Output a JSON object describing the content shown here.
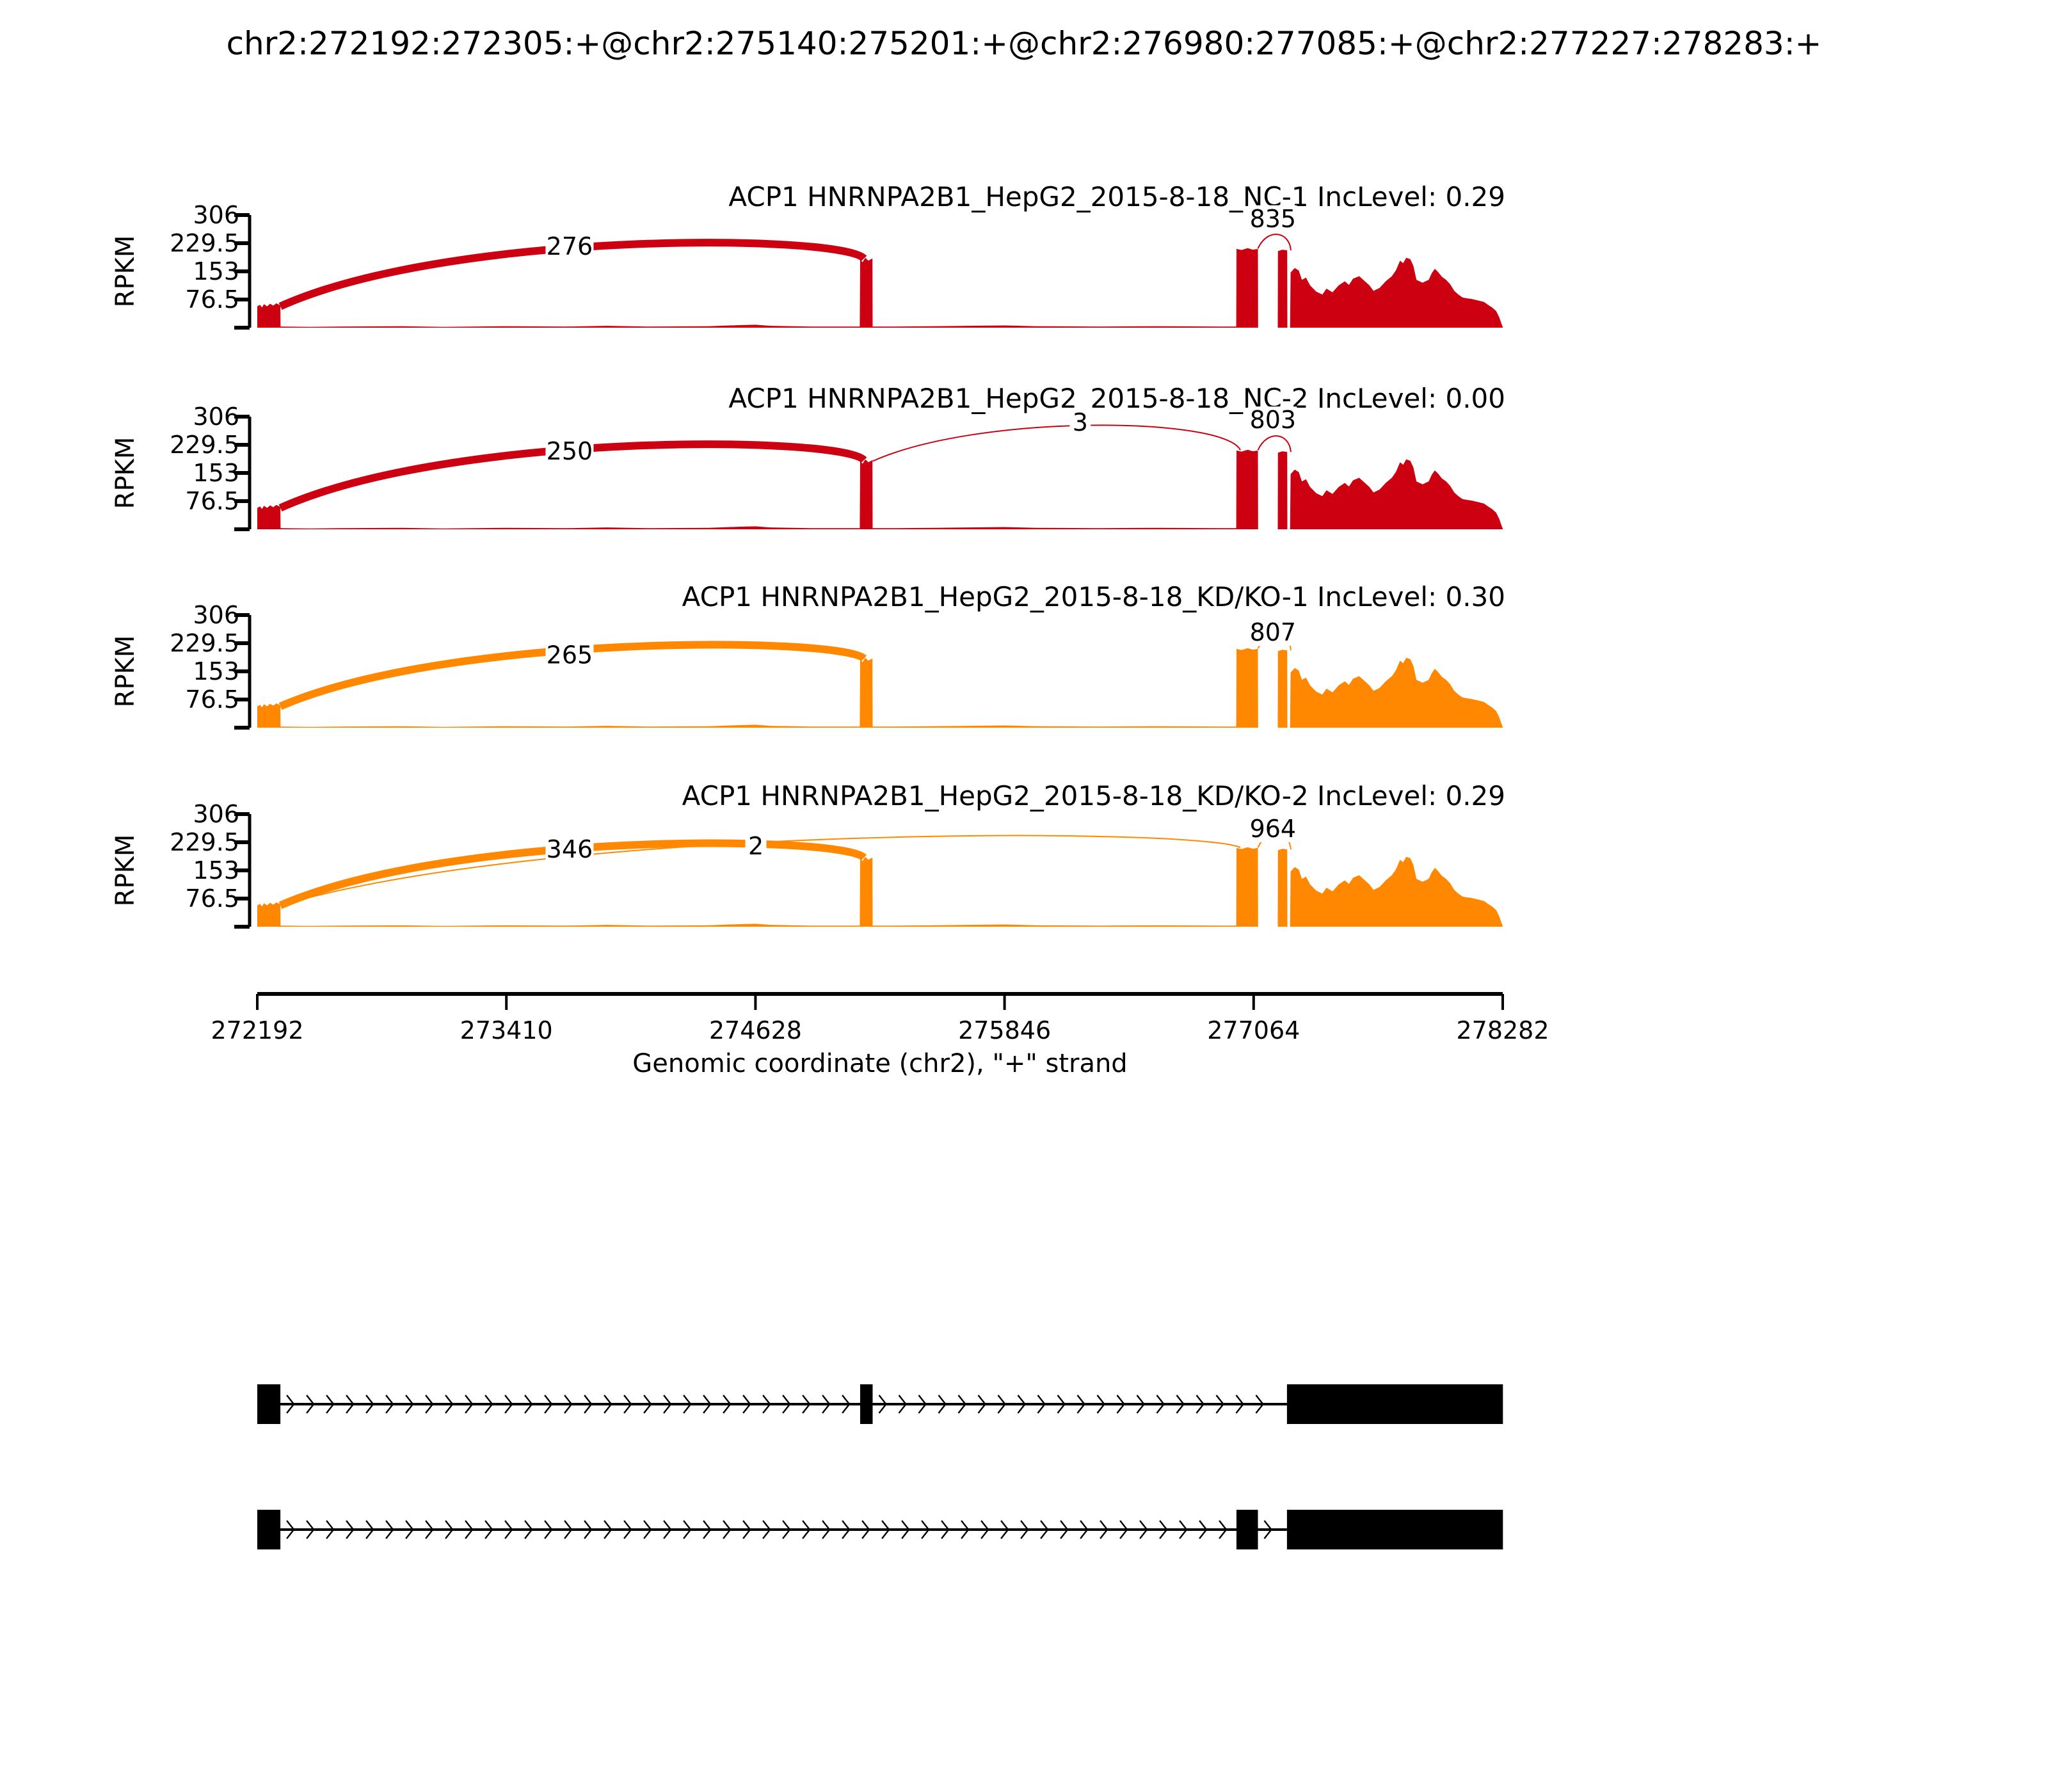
{
  "title": "chr2:272192:272305:+@chr2:275140:275201:+@chr2:276980:277085:+@chr2:277227:278283:+",
  "colors": {
    "group1": "#CC0011",
    "group2": "#FF8800",
    "axis": "#000000",
    "isoform": "#000000",
    "background": "#ffffff"
  },
  "y_axis": {
    "label": "RPKM",
    "tick_labels": [
      "306",
      "229.5",
      "153",
      "76.5"
    ],
    "tick_values": [
      306,
      229.5,
      153,
      76.5
    ],
    "max": 306
  },
  "x_axis": {
    "label": "Genomic coordinate (chr2), \"+\" strand",
    "tick_labels": [
      "272192",
      "273410",
      "274628",
      "275846",
      "277064",
      "278282"
    ],
    "tick_values": [
      272192,
      273410,
      274628,
      275846,
      277064,
      278282
    ],
    "min": 272192,
    "max": 278282
  },
  "chart_data": {
    "type": "area",
    "subtype": "sashimi-coverage",
    "region": "chr2:272192-278282",
    "strand": "+",
    "gene": "ACP1",
    "exons": [
      [
        272192,
        272305
      ],
      [
        275140,
        275201
      ],
      [
        276980,
        277085
      ],
      [
        277227,
        278283
      ]
    ],
    "ylim": [
      0,
      306
    ],
    "grid": false,
    "tracks": [
      {
        "label": "ACP1 HNRNPA2B1_HepG2_2015-8-18_NC-1 IncLevel: 0.29",
        "inc_level": 0.29,
        "color": "#CC0011",
        "junctions": [
          {
            "count": 276,
            "from": 272305,
            "from_h": 58,
            "to": 275140,
            "to_h": 188,
            "apex": 238,
            "style": "thick",
            "label_g": 273719,
            "label_rpkm": 221
          },
          {
            "count": 835,
            "from": 277085,
            "from_h": 215,
            "to": 277227,
            "to_h": 210,
            "apex": 245,
            "style": "thin",
            "label_g": 277158,
            "label_rpkm": 296
          }
        ]
      },
      {
        "label": "ACP1 HNRNPA2B1_HepG2_2015-8-18_NC-2 IncLevel: 0.00",
        "inc_level": 0.0,
        "color": "#CC0011",
        "junctions": [
          {
            "count": 250,
            "from": 272305,
            "from_h": 58,
            "to": 275140,
            "to_h": 188,
            "apex": 238,
            "style": "thick",
            "label_g": 273719,
            "label_rpkm": 212
          },
          {
            "count": 3,
            "from": 275201,
            "from_h": 185,
            "to": 276980,
            "to_h": 215,
            "apex": 288,
            "style": "thin",
            "label_g": 276216,
            "label_rpkm": 290
          },
          {
            "count": 803,
            "from": 277085,
            "from_h": 215,
            "to": 277227,
            "to_h": 210,
            "apex": 245,
            "style": "thin",
            "label_g": 277158,
            "label_rpkm": 297
          }
        ]
      },
      {
        "label": "ACP1 HNRNPA2B1_HepG2_2015-8-18_KD/KO-1 IncLevel: 0.30",
        "inc_level": 0.3,
        "color": "#FF8800",
        "junctions": [
          {
            "count": 265,
            "from": 272305,
            "from_h": 58,
            "to": 275140,
            "to_h": 188,
            "apex": 230,
            "style": "thick",
            "label_g": 273719,
            "label_rpkm": 197
          },
          {
            "count": 807,
            "from": 277085,
            "from_h": 215,
            "to": 277227,
            "to_h": 210,
            "apex": 245,
            "style": "thin",
            "label_g": 277158,
            "label_rpkm": 259
          }
        ]
      },
      {
        "label": "ACP1 HNRNPA2B1_HepG2_2015-8-18_KD/KO-2 IncLevel: 0.29",
        "inc_level": 0.29,
        "color": "#FF8800",
        "junctions": [
          {
            "count": 346,
            "from": 272305,
            "from_h": 58,
            "to": 275140,
            "to_h": 188,
            "apex": 232,
            "style": "thick",
            "label_g": 273719,
            "label_rpkm": 210
          },
          {
            "count": 2,
            "from": 272305,
            "from_h": 58,
            "to": 276980,
            "to_h": 215,
            "apex": 252,
            "style": "thin",
            "label_g": 274630,
            "label_rpkm": 219
          },
          {
            "count": 964,
            "from": 277085,
            "from_h": 215,
            "to": 277227,
            "to_h": 210,
            "apex": 245,
            "style": "thin",
            "label_g": 277158,
            "label_rpkm": 266
          }
        ]
      }
    ],
    "coverage_profile": [
      [
        272192,
        58
      ],
      [
        272205,
        62
      ],
      [
        272215,
        55
      ],
      [
        272225,
        64
      ],
      [
        272240,
        58
      ],
      [
        272255,
        65
      ],
      [
        272270,
        60
      ],
      [
        272285,
        66
      ],
      [
        272300,
        62
      ],
      [
        272305,
        60
      ],
      [
        272306,
        3
      ],
      [
        272450,
        2
      ],
      [
        272600,
        3
      ],
      [
        272900,
        4
      ],
      [
        273100,
        2
      ],
      [
        273400,
        4
      ],
      [
        273700,
        3
      ],
      [
        273900,
        5
      ],
      [
        274100,
        3
      ],
      [
        274400,
        4
      ],
      [
        274550,
        7
      ],
      [
        274628,
        8
      ],
      [
        274700,
        5
      ],
      [
        274900,
        3
      ],
      [
        275100,
        3
      ],
      [
        275138,
        3
      ],
      [
        275140,
        185
      ],
      [
        275152,
        178
      ],
      [
        275165,
        190
      ],
      [
        275180,
        182
      ],
      [
        275200,
        188
      ],
      [
        275201,
        3
      ],
      [
        275300,
        3
      ],
      [
        275500,
        4
      ],
      [
        275846,
        6
      ],
      [
        276000,
        4
      ],
      [
        276300,
        3
      ],
      [
        276600,
        4
      ],
      [
        276900,
        3
      ],
      [
        276979,
        3
      ],
      [
        276980,
        214
      ],
      [
        277005,
        211
      ],
      [
        277035,
        216
      ],
      [
        277060,
        212
      ],
      [
        277085,
        214
      ],
      [
        277086,
        0
      ],
      [
        277182,
        0
      ],
      [
        277183,
        208
      ],
      [
        277205,
        212
      ],
      [
        277228,
        210
      ],
      [
        277229,
        0
      ],
      [
        277242,
        0
      ],
      [
        277245,
        150
      ],
      [
        277265,
        162
      ],
      [
        277285,
        155
      ],
      [
        277300,
        130
      ],
      [
        277320,
        136
      ],
      [
        277340,
        115
      ],
      [
        277370,
        98
      ],
      [
        277400,
        90
      ],
      [
        277420,
        106
      ],
      [
        277450,
        96
      ],
      [
        277480,
        115
      ],
      [
        277510,
        126
      ],
      [
        277530,
        116
      ],
      [
        277550,
        133
      ],
      [
        277580,
        140
      ],
      [
        277600,
        130
      ],
      [
        277630,
        115
      ],
      [
        277650,
        100
      ],
      [
        277680,
        108
      ],
      [
        277710,
        126
      ],
      [
        277740,
        140
      ],
      [
        277760,
        156
      ],
      [
        277780,
        182
      ],
      [
        277795,
        175
      ],
      [
        277810,
        190
      ],
      [
        277830,
        186
      ],
      [
        277845,
        168
      ],
      [
        277860,
        130
      ],
      [
        277890,
        122
      ],
      [
        277920,
        130
      ],
      [
        277935,
        148
      ],
      [
        277950,
        160
      ],
      [
        277965,
        152
      ],
      [
        277985,
        138
      ],
      [
        278005,
        130
      ],
      [
        278025,
        118
      ],
      [
        278045,
        100
      ],
      [
        278065,
        90
      ],
      [
        278085,
        82
      ],
      [
        278105,
        80
      ],
      [
        278130,
        78
      ],
      [
        278160,
        74
      ],
      [
        278190,
        70
      ],
      [
        278210,
        62
      ],
      [
        278230,
        55
      ],
      [
        278250,
        45
      ],
      [
        278265,
        28
      ],
      [
        278275,
        12
      ],
      [
        278281,
        3
      ],
      [
        278283,
        0
      ]
    ],
    "isoforms": [
      {
        "exons": [
          [
            272192,
            272305
          ],
          [
            275140,
            275201
          ],
          [
            277227,
            278283
          ]
        ]
      },
      {
        "exons": [
          [
            272192,
            272305
          ],
          [
            276980,
            277085
          ],
          [
            277227,
            278283
          ]
        ]
      }
    ]
  }
}
